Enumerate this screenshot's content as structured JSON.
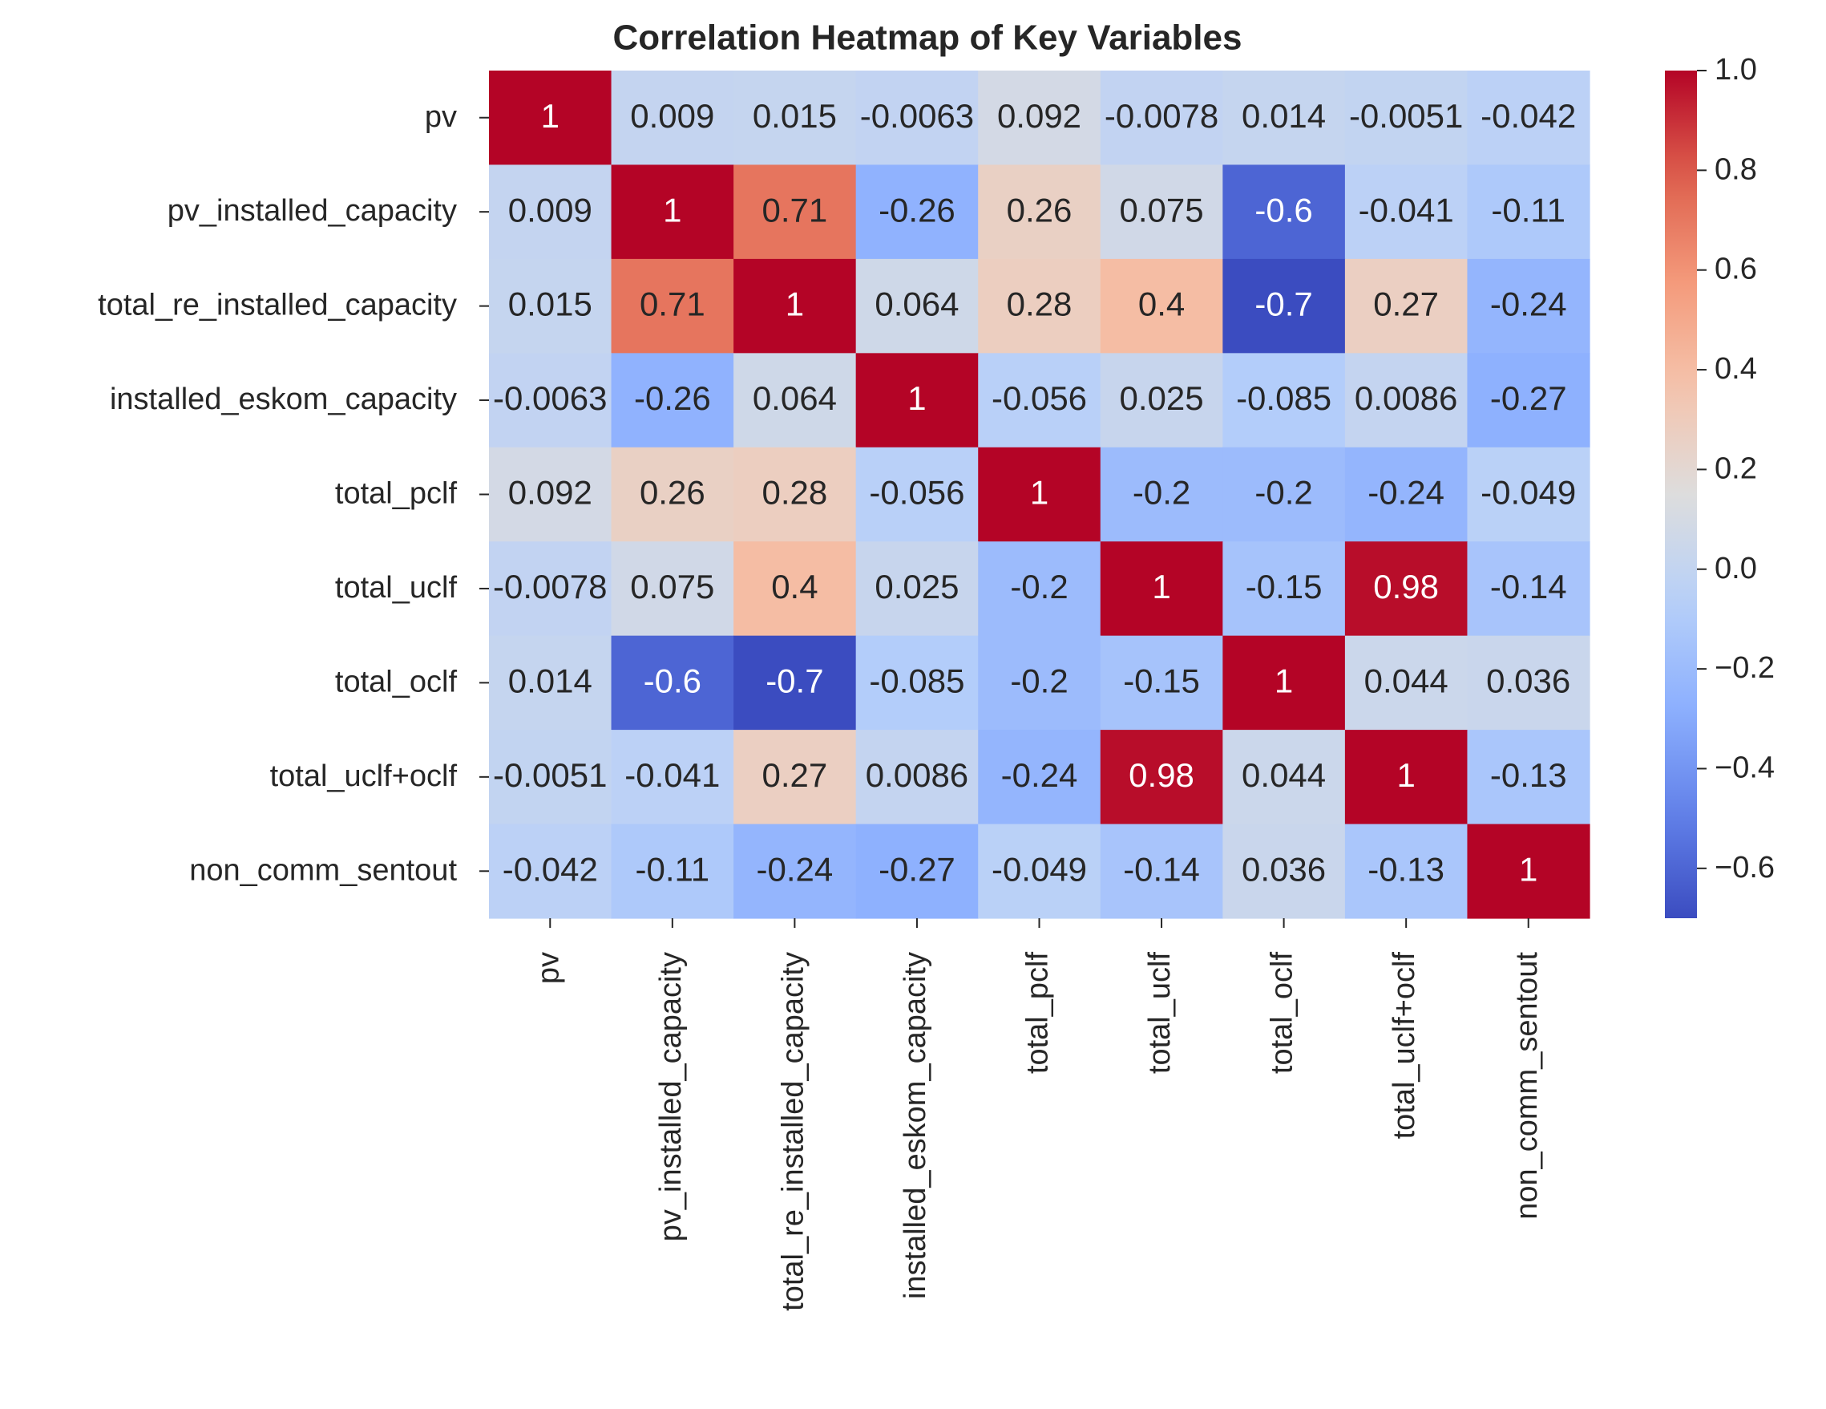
{
  "chart_data": {
    "type": "heatmap",
    "title": "Correlation Heatmap of Key Variables",
    "xlabel": "",
    "ylabel": "",
    "labels": [
      "pv",
      "pv_installed_capacity",
      "total_re_installed_capacity",
      "installed_eskom_capacity",
      "total_pclf",
      "total_uclf",
      "total_oclf",
      "total_uclf+oclf",
      "non_comm_sentout"
    ],
    "values": [
      [
        1,
        0.009,
        0.015,
        -0.0063,
        0.092,
        -0.0078,
        0.014,
        -0.0051,
        -0.042
      ],
      [
        0.009,
        1,
        0.71,
        -0.26,
        0.26,
        0.075,
        -0.6,
        -0.041,
        -0.11
      ],
      [
        0.015,
        0.71,
        1,
        0.064,
        0.28,
        0.4,
        -0.7,
        0.27,
        -0.24
      ],
      [
        -0.0063,
        -0.26,
        0.064,
        1,
        -0.056,
        0.025,
        -0.085,
        0.0086,
        -0.27
      ],
      [
        0.092,
        0.26,
        0.28,
        -0.056,
        1,
        -0.2,
        -0.2,
        -0.24,
        -0.049
      ],
      [
        -0.0078,
        0.075,
        0.4,
        0.025,
        -0.2,
        1,
        -0.15,
        0.98,
        -0.14
      ],
      [
        0.014,
        -0.6,
        -0.7,
        -0.085,
        -0.2,
        -0.15,
        1,
        0.044,
        0.036
      ],
      [
        -0.0051,
        -0.041,
        0.27,
        0.0086,
        -0.24,
        0.98,
        0.044,
        1,
        -0.13
      ],
      [
        -0.042,
        -0.11,
        -0.24,
        -0.27,
        -0.049,
        -0.14,
        0.036,
        -0.13,
        1
      ]
    ],
    "annotations": [
      [
        "1",
        "0.009",
        "0.015",
        "-0.0063",
        "0.092",
        "-0.0078",
        "0.014",
        "-0.0051",
        "-0.042"
      ],
      [
        "0.009",
        "1",
        "0.71",
        "-0.26",
        "0.26",
        "0.075",
        "-0.6",
        "-0.041",
        "-0.11"
      ],
      [
        "0.015",
        "0.71",
        "1",
        "0.064",
        "0.28",
        "0.4",
        "-0.7",
        "0.27",
        "-0.24"
      ],
      [
        "-0.0063",
        "-0.26",
        "0.064",
        "1",
        "-0.056",
        "0.025",
        "-0.085",
        "0.0086",
        "-0.27"
      ],
      [
        "0.092",
        "0.26",
        "0.28",
        "-0.056",
        "1",
        "-0.2",
        "-0.2",
        "-0.24",
        "-0.049"
      ],
      [
        "-0.0078",
        "0.075",
        "0.4",
        "0.025",
        "-0.2",
        "1",
        "-0.15",
        "0.98",
        "-0.14"
      ],
      [
        "0.014",
        "-0.6",
        "-0.7",
        "-0.085",
        "-0.2",
        "-0.15",
        "1",
        "0.044",
        "0.036"
      ],
      [
        "-0.0051",
        "-0.041",
        "0.27",
        "0.0086",
        "-0.24",
        "0.98",
        "0.044",
        "1",
        "-0.13"
      ],
      [
        "-0.042",
        "-0.11",
        "-0.24",
        "-0.27",
        "-0.049",
        "-0.14",
        "0.036",
        "-0.13",
        "1"
      ]
    ],
    "colorbar": {
      "colormap": "coolwarm",
      "range": [
        -0.7,
        1.0
      ],
      "ticks": [
        1.0,
        0.8,
        0.6,
        0.4,
        0.2,
        0.0,
        -0.2,
        -0.4,
        -0.6
      ],
      "tick_labels": [
        "1.0",
        "0.8",
        "0.6",
        "0.4",
        "0.2",
        "0.0",
        "−0.2",
        "−0.4",
        "−0.6"
      ]
    },
    "grid": false,
    "legend": "colorbar-right"
  }
}
